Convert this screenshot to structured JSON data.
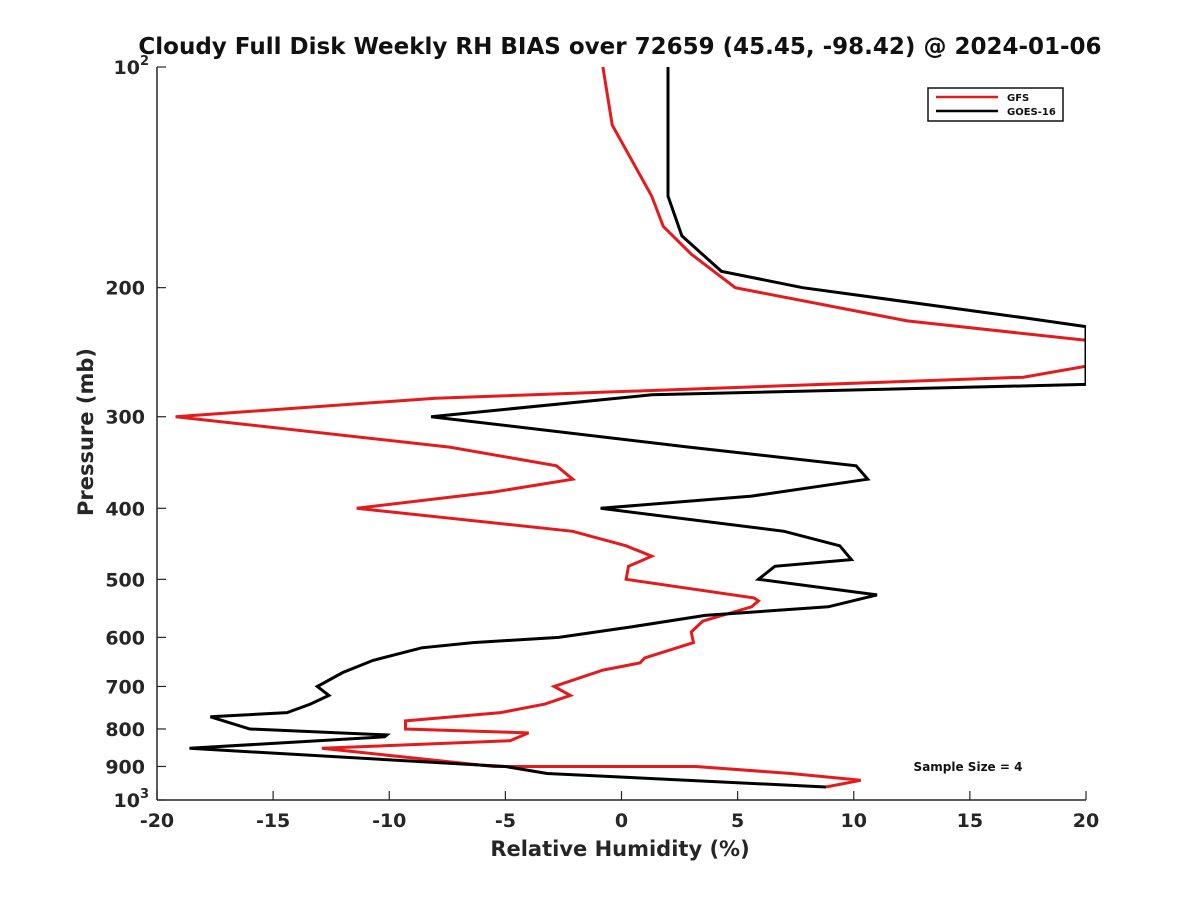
{
  "chart_data": {
    "type": "line",
    "title": "Cloudy Full Disk Weekly RH BIAS over 72659 (45.45, -98.42) @ 2024-01-06",
    "xlabel": "Relative Humidity (%)",
    "ylabel": "Pressure (mb)",
    "xlim": [
      -20,
      20
    ],
    "ylim": [
      100,
      1000
    ],
    "yscale": "log",
    "yreversed": true,
    "grid": false,
    "legend_position": "top-right",
    "x_ticks": [
      "-20",
      "-15",
      "-10",
      "-5",
      "0",
      "5",
      "10",
      "15",
      "20"
    ],
    "x_tick_values": [
      -20,
      -15,
      -10,
      -5,
      0,
      5,
      10,
      15,
      20
    ],
    "y_ticks": [
      {
        "value": 100,
        "base": "10",
        "exp": "2"
      },
      {
        "value": 200,
        "label": "200"
      },
      {
        "value": 300,
        "label": "300"
      },
      {
        "value": 400,
        "label": "400"
      },
      {
        "value": 500,
        "label": "500"
      },
      {
        "value": 600,
        "label": "600"
      },
      {
        "value": 700,
        "label": "700"
      },
      {
        "value": 800,
        "label": "800"
      },
      {
        "value": 900,
        "label": "900"
      },
      {
        "value": 1000,
        "base": "10",
        "exp": "3"
      }
    ],
    "annotation": "Sample Size = 4",
    "series": [
      {
        "name": "GFS",
        "color": "#e41a1c",
        "points": [
          [
            -0.8,
            100
          ],
          [
            -0.4,
            120
          ],
          [
            1.3,
            150
          ],
          [
            1.8,
            165
          ],
          [
            3.0,
            180
          ],
          [
            4.9,
            200
          ],
          [
            12.3,
            222
          ],
          [
            20.0,
            236
          ],
          [
            20.0,
            256
          ],
          [
            17.3,
            265
          ],
          [
            -8.0,
            283
          ],
          [
            -19.2,
            300
          ],
          [
            -7.4,
            330
          ],
          [
            -2.8,
            350
          ],
          [
            -2.1,
            365
          ],
          [
            -5.5,
            380
          ],
          [
            -11.4,
            400
          ],
          [
            -2.1,
            430
          ],
          [
            0.2,
            450
          ],
          [
            1.3,
            465
          ],
          [
            0.3,
            480
          ],
          [
            0.2,
            500
          ],
          [
            5.7,
            530
          ],
          [
            5.9,
            535
          ],
          [
            5.6,
            545
          ],
          [
            3.5,
            570
          ],
          [
            3.0,
            590
          ],
          [
            3.1,
            610
          ],
          [
            1.0,
            640
          ],
          [
            0.8,
            650
          ],
          [
            -0.8,
            665
          ],
          [
            -2.9,
            700
          ],
          [
            -2.2,
            720
          ],
          [
            -3.3,
            740
          ],
          [
            -5.2,
            760
          ],
          [
            -9.3,
            780
          ],
          [
            -9.3,
            800
          ],
          [
            -4.0,
            810
          ],
          [
            -4.8,
            830
          ],
          [
            -12.9,
            850
          ],
          [
            -5.5,
            900
          ],
          [
            3.2,
            900
          ],
          [
            7.3,
            920
          ],
          [
            10.3,
            940
          ],
          [
            8.8,
            960
          ]
        ]
      },
      {
        "name": "GOES-16",
        "color": "#000000",
        "points": [
          [
            2.0,
            100
          ],
          [
            2.0,
            150
          ],
          [
            2.6,
            170
          ],
          [
            4.3,
            190
          ],
          [
            7.8,
            200
          ],
          [
            17.4,
            220
          ],
          [
            20.0,
            226
          ],
          [
            20.0,
            271
          ],
          [
            1.3,
            280
          ],
          [
            -8.2,
            300
          ],
          [
            2.9,
            330
          ],
          [
            10.1,
            350
          ],
          [
            10.6,
            365
          ],
          [
            5.6,
            385
          ],
          [
            -0.9,
            400
          ],
          [
            7.0,
            430
          ],
          [
            9.4,
            450
          ],
          [
            9.9,
            470
          ],
          [
            6.6,
            480
          ],
          [
            5.9,
            500
          ],
          [
            11.0,
            525
          ],
          [
            8.9,
            545
          ],
          [
            3.6,
            560
          ],
          [
            0.5,
            580
          ],
          [
            -2.7,
            600
          ],
          [
            -6.4,
            610
          ],
          [
            -8.6,
            620
          ],
          [
            -10.7,
            645
          ],
          [
            -12.0,
            670
          ],
          [
            -13.1,
            700
          ],
          [
            -12.6,
            720
          ],
          [
            -13.4,
            740
          ],
          [
            -14.4,
            760
          ],
          [
            -17.7,
            770
          ],
          [
            -16.0,
            800
          ],
          [
            -10.1,
            815
          ],
          [
            -10.2,
            820
          ],
          [
            -18.6,
            850
          ],
          [
            -5.0,
            900
          ],
          [
            -3.2,
            920
          ],
          [
            8.8,
            960
          ]
        ]
      }
    ]
  }
}
